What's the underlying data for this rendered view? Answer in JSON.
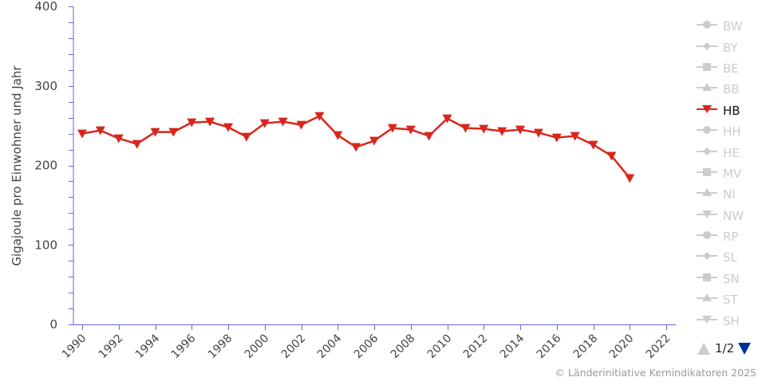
{
  "chart_data": {
    "type": "line",
    "title": "",
    "xlabel": "",
    "ylabel": "Gigajoule pro Einwohner und Jahr",
    "ylim": [
      0,
      400
    ],
    "xlim": [
      1990,
      2022
    ],
    "y_ticks": [
      0,
      100,
      200,
      300,
      400
    ],
    "x_ticks": [
      1990,
      1992,
      1994,
      1996,
      1998,
      2000,
      2002,
      2004,
      2006,
      2008,
      2010,
      2012,
      2014,
      2016,
      2018,
      2020,
      2022
    ],
    "grid": false,
    "legend_position": "right",
    "x": [
      1990,
      1991,
      1992,
      1993,
      1994,
      1995,
      1996,
      1997,
      1998,
      1999,
      2000,
      2001,
      2002,
      2003,
      2004,
      2005,
      2006,
      2007,
      2008,
      2009,
      2010,
      2011,
      2012,
      2013,
      2014,
      2015,
      2016,
      2017,
      2018,
      2019,
      2020
    ],
    "series": [
      {
        "name": "HB",
        "visible": true,
        "color": "#d9261c",
        "marker": "triangle-down",
        "values": [
          240,
          244,
          234,
          227,
          242,
          242,
          254,
          255,
          248,
          236,
          253,
          255,
          251,
          262,
          238,
          223,
          231,
          247,
          245,
          237,
          259,
          247,
          246,
          243,
          245,
          241,
          235,
          237,
          226,
          212,
          184
        ]
      }
    ]
  },
  "legend": {
    "items": [
      {
        "label": "BW",
        "marker": "circle",
        "active": false
      },
      {
        "label": "BY",
        "marker": "diamond",
        "active": false
      },
      {
        "label": "BE",
        "marker": "square",
        "active": false
      },
      {
        "label": "BB",
        "marker": "triangle",
        "active": false
      },
      {
        "label": "HB",
        "marker": "triangle-down",
        "active": true
      },
      {
        "label": "HH",
        "marker": "circle",
        "active": false
      },
      {
        "label": "HE",
        "marker": "diamond",
        "active": false
      },
      {
        "label": "MV",
        "marker": "square",
        "active": false
      },
      {
        "label": "NI",
        "marker": "triangle",
        "active": false
      },
      {
        "label": "NW",
        "marker": "triangle-down",
        "active": false
      },
      {
        "label": "RP",
        "marker": "circle",
        "active": false
      },
      {
        "label": "SL",
        "marker": "diamond",
        "active": false
      },
      {
        "label": "SN",
        "marker": "square",
        "active": false
      },
      {
        "label": "ST",
        "marker": "triangle",
        "active": false
      },
      {
        "label": "SH",
        "marker": "triangle-down",
        "active": false
      }
    ],
    "page": "1/2"
  },
  "colors": {
    "axis": "#6666dd",
    "series_active": "#d9261c",
    "legend_inactive": "#cccccc",
    "pager_active": "#003399"
  },
  "credits": "© Länderinitiative Kernindikatoren 2025"
}
